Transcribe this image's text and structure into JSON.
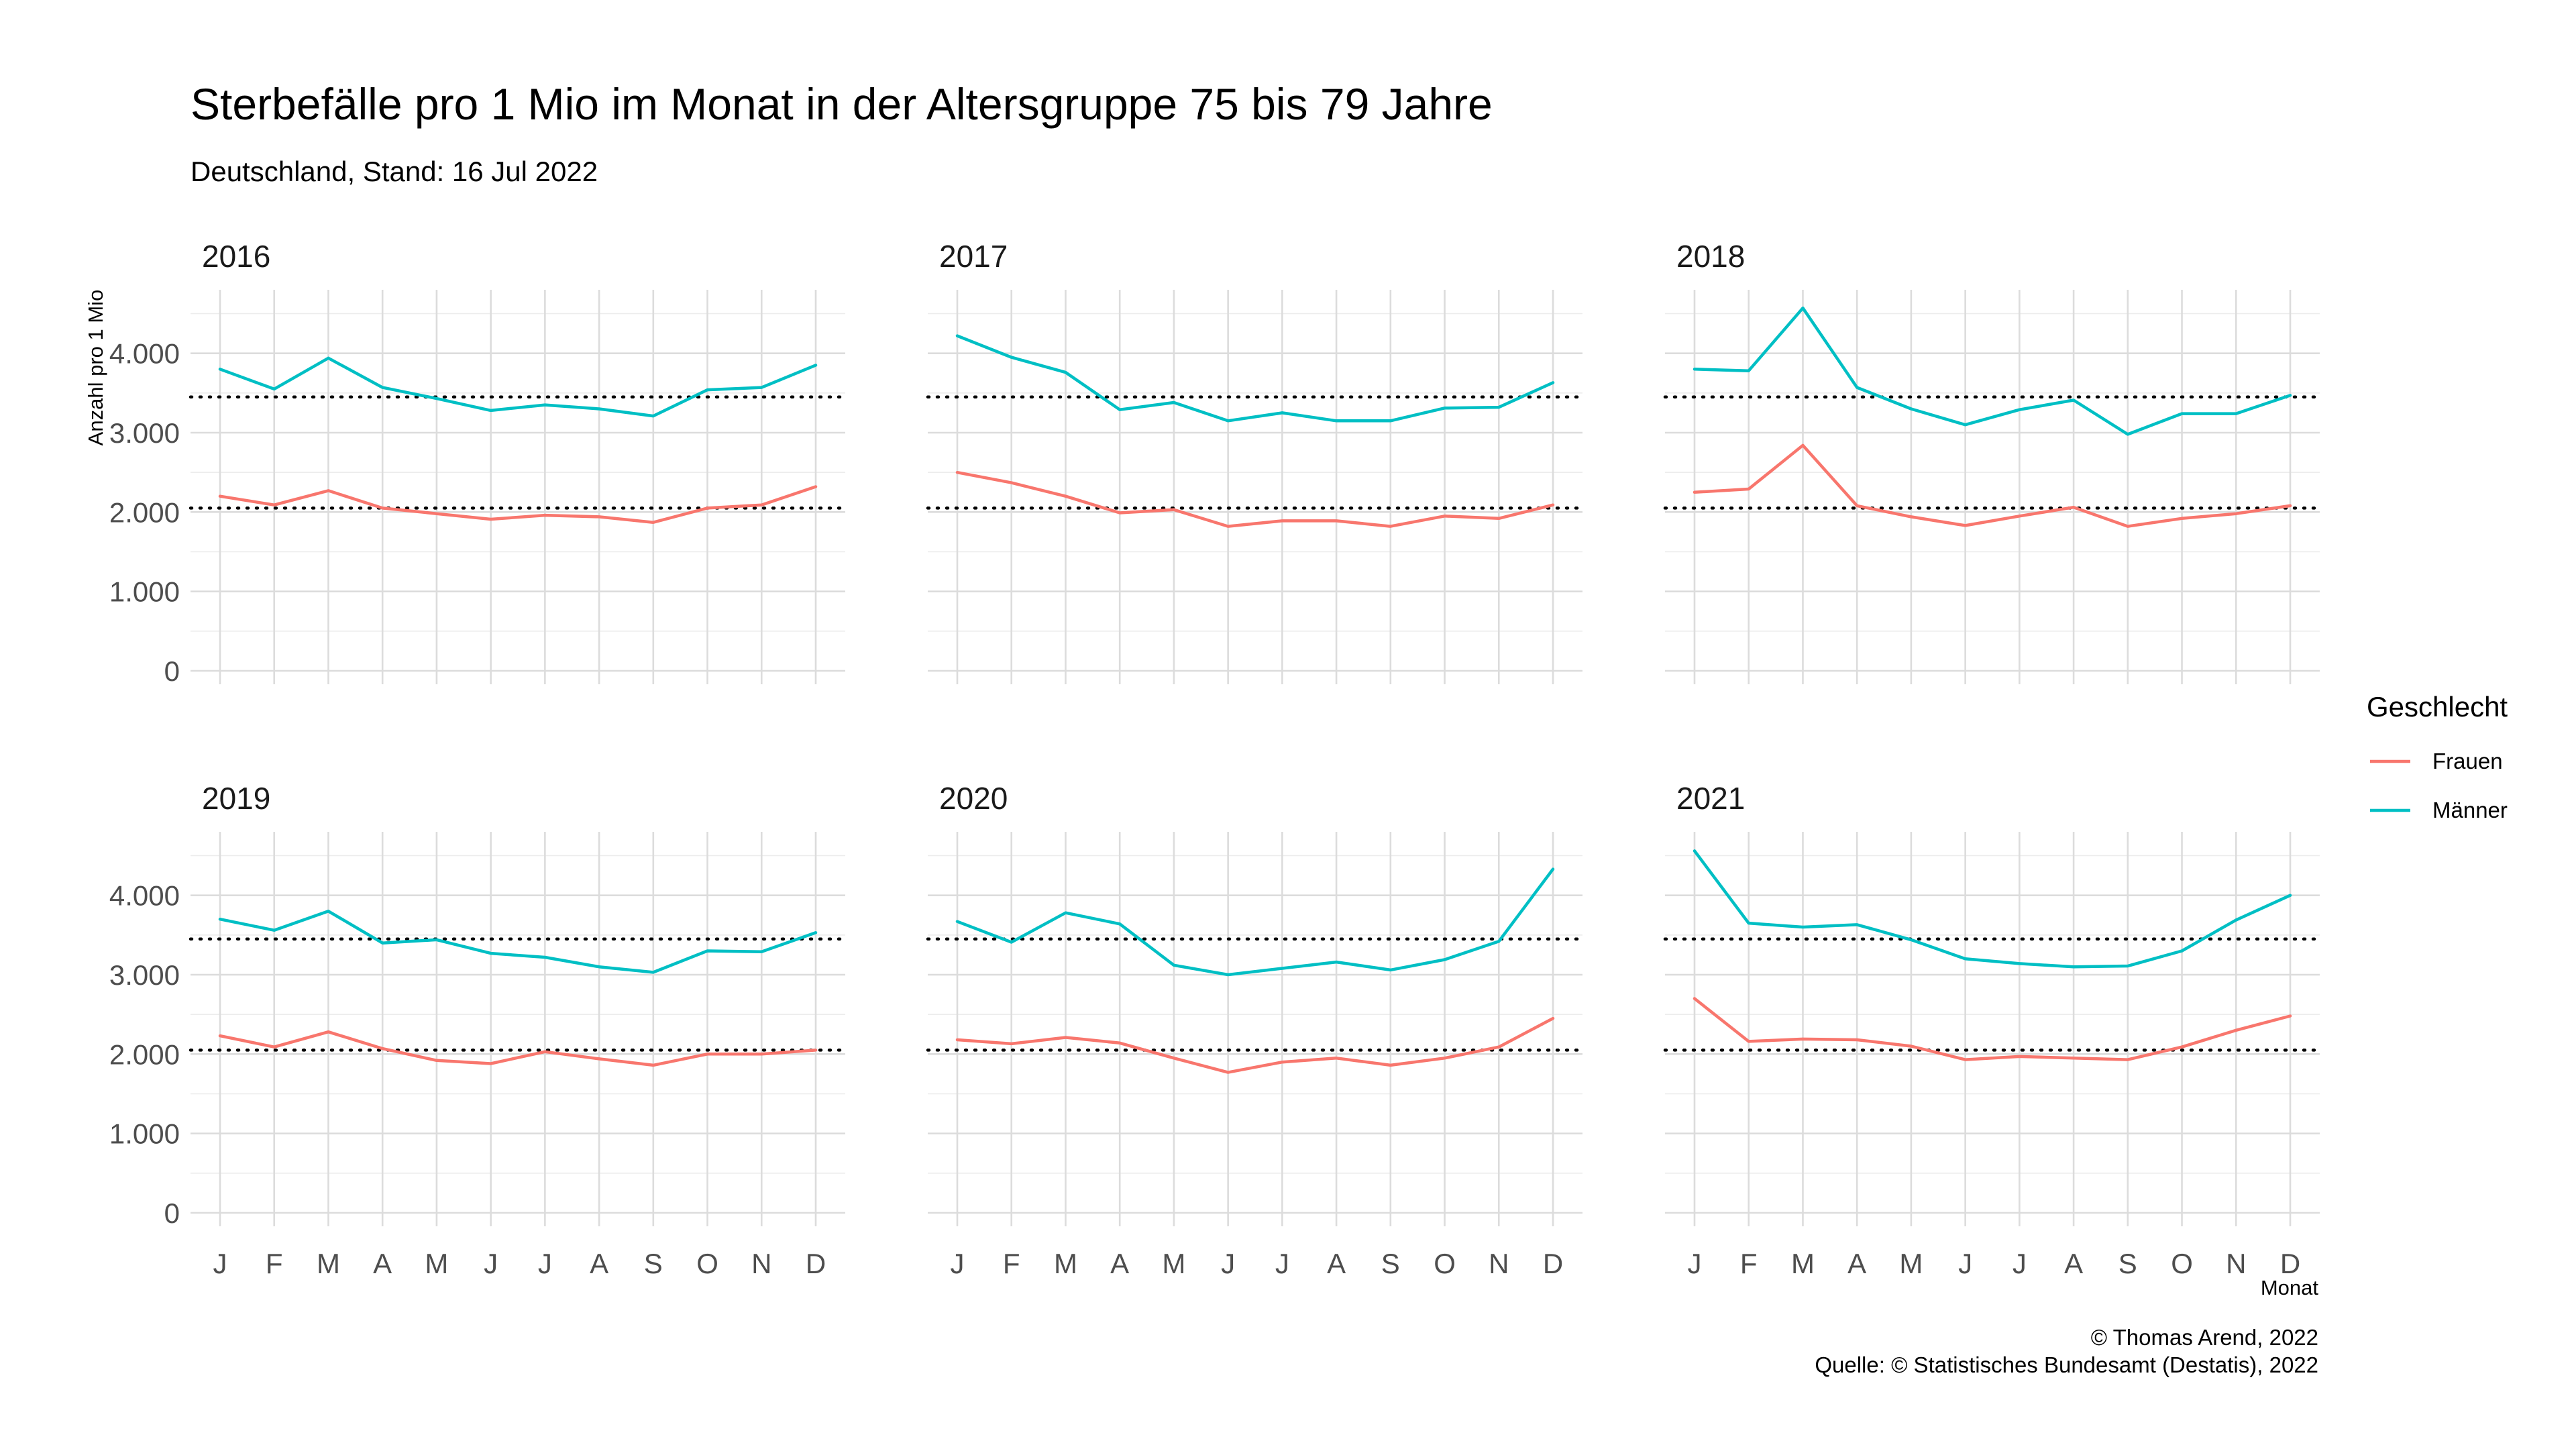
{
  "title": "Sterbefälle pro 1 Mio im Monat in der Altersgruppe 75 bis 79 Jahre",
  "subtitle": "Deutschland, Stand: 16 Jul 2022",
  "ylabel": "Anzahl pro 1 Mio",
  "xlabel": "Monat",
  "legend": {
    "title": "Geschlecht",
    "items": [
      {
        "label": "Frauen",
        "color": "#F8766D"
      },
      {
        "label": "Männer",
        "color": "#00BFC4"
      }
    ]
  },
  "caption": {
    "line1": "© Thomas Arend, 2022",
    "line2": "Quelle: © Statistisches Bundesamt (Destatis), 2022"
  },
  "chart_data": {
    "type": "line",
    "facet_by": "year",
    "months": [
      "J",
      "F",
      "M",
      "A",
      "M",
      "J",
      "J",
      "A",
      "S",
      "O",
      "N",
      "D"
    ],
    "y_ticks": [
      "0",
      "1.000",
      "2.000",
      "3.000",
      "4.000"
    ],
    "y_tick_values": [
      0,
      1000,
      2000,
      3000,
      4000
    ],
    "ylim": [
      0,
      4800
    ],
    "grid": true,
    "legend_position": "right",
    "reference_lines": {
      "Frauen": 2050,
      "Männer": 3450,
      "style": "dotted",
      "color": "#000000"
    },
    "panels": [
      {
        "year": "2016",
        "series": [
          {
            "name": "Frauen",
            "values": [
              2200,
              2090,
              2270,
              2050,
              1980,
              1910,
              1960,
              1940,
              1870,
              2050,
              2090,
              2320
            ]
          },
          {
            "name": "Männer",
            "values": [
              3800,
              3550,
              3940,
              3570,
              3430,
              3280,
              3350,
              3300,
              3210,
              3540,
              3570,
              3850
            ]
          }
        ]
      },
      {
        "year": "2017",
        "series": [
          {
            "name": "Frauen",
            "values": [
              2500,
              2370,
              2200,
              1990,
              2030,
              1820,
              1890,
              1890,
              1820,
              1950,
              1920,
              2090
            ]
          },
          {
            "name": "Männer",
            "values": [
              4220,
              3950,
              3760,
              3290,
              3380,
              3150,
              3250,
              3150,
              3150,
              3310,
              3320,
              3630
            ]
          }
        ]
      },
      {
        "year": "2018",
        "series": [
          {
            "name": "Frauen",
            "values": [
              2250,
              2290,
              2840,
              2080,
              1940,
              1830,
              1950,
              2060,
              1820,
              1920,
              1980,
              2080
            ]
          },
          {
            "name": "Männer",
            "values": [
              3800,
              3780,
              4570,
              3570,
              3300,
              3100,
              3290,
              3410,
              2980,
              3240,
              3240,
              3470
            ]
          }
        ]
      },
      {
        "year": "2019",
        "series": [
          {
            "name": "Frauen",
            "values": [
              2230,
              2090,
              2280,
              2070,
              1920,
              1880,
              2030,
              1940,
              1860,
              2000,
              2000,
              2050
            ]
          },
          {
            "name": "Männer",
            "values": [
              3700,
              3560,
              3800,
              3400,
              3440,
              3270,
              3220,
              3100,
              3030,
              3300,
              3290,
              3530
            ]
          }
        ]
      },
      {
        "year": "2020",
        "series": [
          {
            "name": "Frauen",
            "values": [
              2180,
              2130,
              2210,
              2140,
              1950,
              1770,
              1900,
              1950,
              1860,
              1950,
              2090,
              2450
            ]
          },
          {
            "name": "Männer",
            "values": [
              3670,
              3410,
              3780,
              3640,
              3120,
              3000,
              3080,
              3160,
              3060,
              3190,
              3420,
              4330
            ]
          }
        ]
      },
      {
        "year": "2021",
        "series": [
          {
            "name": "Frauen",
            "values": [
              2700,
              2160,
              2190,
              2180,
              2100,
              1930,
              1970,
              1950,
              1930,
              2090,
              2300,
              2480
            ]
          },
          {
            "name": "Männer",
            "values": [
              4560,
              3650,
              3600,
              3630,
              3440,
              3200,
              3140,
              3100,
              3110,
              3300,
              3690,
              4000
            ]
          }
        ]
      }
    ]
  }
}
